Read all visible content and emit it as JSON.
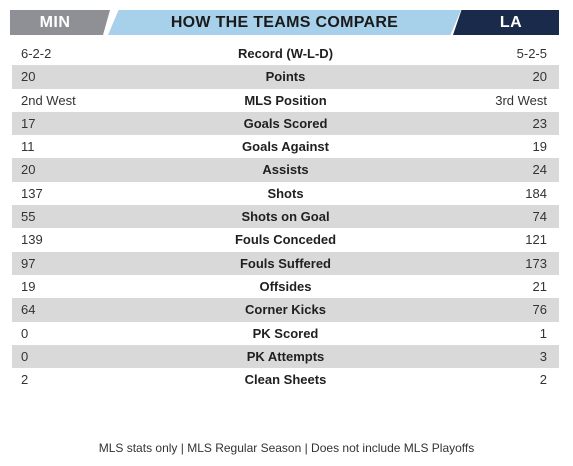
{
  "header": {
    "left_team": "MIN",
    "title": "HOW THE TEAMS COMPARE",
    "right_team": "LA"
  },
  "colors": {
    "left_team_tab": "#8e9095",
    "title_bar": "#a7d0ea",
    "right_team_tab": "#1a2a4a",
    "shaded_row": "#d9d9da"
  },
  "rows": [
    {
      "left": "6-2-2",
      "stat": "Record (W-L-D)",
      "right": "5-2-5"
    },
    {
      "left": "20",
      "stat": "Points",
      "right": "20"
    },
    {
      "left": "2nd West",
      "stat": "MLS Position",
      "right": "3rd West"
    },
    {
      "left": "17",
      "stat": "Goals Scored",
      "right": "23"
    },
    {
      "left": "11",
      "stat": "Goals Against",
      "right": "19"
    },
    {
      "left": "20",
      "stat": "Assists",
      "right": "24"
    },
    {
      "left": "137",
      "stat": "Shots",
      "right": "184"
    },
    {
      "left": "55",
      "stat": "Shots on Goal",
      "right": "74"
    },
    {
      "left": "139",
      "stat": "Fouls Conceded",
      "right": "121"
    },
    {
      "left": "97",
      "stat": "Fouls Suffered",
      "right": "173"
    },
    {
      "left": "19",
      "stat": "Offsides",
      "right": "21"
    },
    {
      "left": "64",
      "stat": "Corner Kicks",
      "right": "76"
    },
    {
      "left": "0",
      "stat": "PK Scored",
      "right": "1"
    },
    {
      "left": "0",
      "stat": "PK Attempts",
      "right": "3"
    },
    {
      "left": "2",
      "stat": "Clean Sheets",
      "right": "2"
    }
  ],
  "footer": "MLS stats only | MLS Regular Season | Does not include MLS Playoffs"
}
